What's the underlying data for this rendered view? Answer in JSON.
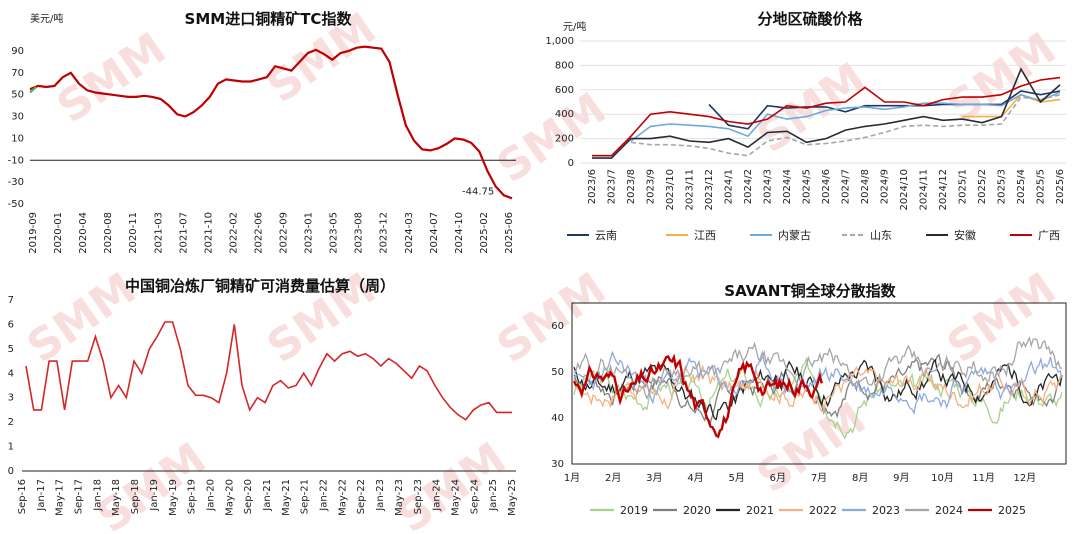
{
  "watermark": "SMM",
  "chart_data": [
    {
      "id": "tc",
      "type": "line",
      "title": "SMM进口铜精矿TC指数",
      "unit": "美元/吨",
      "ylim": [
        -50,
        100
      ],
      "yticks": [
        90,
        70,
        50,
        30,
        10,
        -10,
        -30,
        -50
      ],
      "xticks": [
        "2019-09",
        "2020-01",
        "2020-04",
        "2020-08",
        "2020-11",
        "2021-03",
        "2021-07",
        "2021-10",
        "2022-02",
        "2022-06",
        "2022-09",
        "2023-01",
        "2023-05",
        "2023-08",
        "2023-12",
        "2024-03",
        "2024-07",
        "2024-10",
        "2025-02",
        "2025-06"
      ],
      "annotation": "-44.75",
      "series": [
        {
          "color": "#c00000",
          "values": [
            55,
            58,
            57,
            58,
            66,
            70,
            60,
            54,
            52,
            51,
            50,
            49,
            48,
            48,
            49,
            48,
            46,
            40,
            32,
            30,
            34,
            40,
            48,
            60,
            64,
            63,
            62,
            62,
            64,
            66,
            76,
            74,
            72,
            80,
            88,
            91,
            87,
            82,
            88,
            90,
            93,
            94,
            93,
            92,
            80,
            50,
            22,
            8,
            0,
            -1,
            1,
            5,
            10,
            9,
            6,
            -2,
            -20,
            -34,
            -42,
            -44.75
          ]
        }
      ]
    },
    {
      "id": "acid",
      "type": "line",
      "title": "分地区硫酸价格",
      "unit": "元/吨",
      "ylim": [
        0,
        1000
      ],
      "yticks": [
        "1,000",
        "800",
        "600",
        "400",
        "200",
        "0"
      ],
      "categories": [
        "2023/6",
        "2023/7",
        "2023/8",
        "2023/9",
        "2023/10",
        "2023/11",
        "2023/12",
        "2024/1",
        "2024/2",
        "2024/3",
        "2024/4",
        "2024/5",
        "2024/6",
        "2024/7",
        "2024/8",
        "2024/9",
        "2024/10",
        "2024/11",
        "2024/12",
        "2025/1",
        "2025/2",
        "2025/3",
        "2025/4",
        "2025/5",
        "2025/6"
      ],
      "series": [
        {
          "name": "云南",
          "color": "#1f3864",
          "dash": "",
          "values": [
            null,
            null,
            null,
            null,
            null,
            null,
            480,
            310,
            280,
            470,
            450,
            460,
            460,
            420,
            470,
            470,
            470,
            470,
            480,
            480,
            480,
            480,
            590,
            560,
            590
          ]
        },
        {
          "name": "江西",
          "color": "#f5b041",
          "dash": "",
          "values": [
            null,
            null,
            null,
            null,
            null,
            null,
            null,
            null,
            null,
            null,
            null,
            null,
            null,
            null,
            null,
            null,
            null,
            null,
            null,
            380,
            380,
            380,
            560,
            500,
            520
          ]
        },
        {
          "name": "内蒙古",
          "color": "#6fa8dc",
          "dash": "",
          "values": [
            null,
            null,
            180,
            300,
            320,
            310,
            300,
            280,
            220,
            400,
            360,
            380,
            430,
            450,
            460,
            440,
            460,
            490,
            490,
            480,
            480,
            470,
            560,
            510,
            580
          ]
        },
        {
          "name": "山东",
          "color": "#a6a6a6",
          "dash": "5,3",
          "values": [
            null,
            null,
            170,
            150,
            150,
            140,
            120,
            80,
            60,
            180,
            210,
            150,
            160,
            180,
            210,
            250,
            300,
            310,
            300,
            310,
            310,
            320,
            540,
            520,
            560
          ]
        },
        {
          "name": "安徽",
          "color": "#262b35",
          "dash": "",
          "values": [
            40,
            40,
            200,
            200,
            220,
            180,
            170,
            200,
            130,
            250,
            260,
            170,
            200,
            270,
            300,
            320,
            350,
            380,
            350,
            360,
            330,
            380,
            770,
            500,
            640
          ]
        },
        {
          "name": "广西",
          "color": "#c00000",
          "dash": "",
          "values": [
            60,
            60,
            220,
            400,
            420,
            400,
            380,
            340,
            320,
            360,
            470,
            450,
            490,
            500,
            620,
            500,
            500,
            470,
            520,
            540,
            540,
            560,
            630,
            680,
            700
          ]
        }
      ]
    },
    {
      "id": "weeks",
      "type": "line",
      "title": "中国铜冶炼厂铜精矿可消费量估算（周）",
      "ylim": [
        0,
        7
      ],
      "yticks": [
        7,
        6,
        5,
        4,
        3,
        2,
        1,
        0
      ],
      "xticks": [
        "Sep-16",
        "Jan-17",
        "May-17",
        "Sep-17",
        "Jan-18",
        "May-18",
        "Sep-18",
        "Jan-19",
        "May-19",
        "Sep-19",
        "Jan-20",
        "May-20",
        "Sep-20",
        "Jan-21",
        "May-21",
        "Sep-21",
        "Jan-22",
        "May-22",
        "Sep-22",
        "Jan-23",
        "May-23",
        "Sep-23",
        "Jan-24",
        "May-24",
        "Sep-24",
        "Jan-25",
        "May-25"
      ],
      "series": [
        {
          "color": "#d62728",
          "values": [
            4.3,
            2.5,
            2.5,
            4.5,
            4.5,
            2.5,
            4.5,
            4.5,
            4.5,
            5.5,
            4.5,
            3,
            3.5,
            3,
            4.5,
            4,
            5,
            5.5,
            6.1,
            6.1,
            5,
            3.5,
            3.1,
            3.1,
            3,
            2.8,
            4,
            6,
            3.5,
            2.5,
            3,
            2.8,
            3.5,
            3.7,
            3.4,
            3.5,
            4,
            3.5,
            4.2,
            4.8,
            4.5,
            4.8,
            4.9,
            4.7,
            4.8,
            4.6,
            4.3,
            4.6,
            4.4,
            4.1,
            3.8,
            4.3,
            4.1,
            3.5,
            3,
            2.6,
            2.3,
            2.1,
            2.5,
            2.7,
            2.8,
            2.4,
            2.4,
            2.4
          ]
        }
      ]
    },
    {
      "id": "savant",
      "type": "line",
      "title": "SAVANT铜全球分散指数",
      "ylim": [
        30,
        65
      ],
      "yticks": [
        60,
        50,
        40,
        30
      ],
      "xticks": [
        "1月",
        "2月",
        "3月",
        "4月",
        "5月",
        "6月",
        "7月",
        "8月",
        "9月",
        "10月",
        "11月",
        "12月"
      ],
      "series": [
        {
          "name": "2019",
          "color": "#a9d18e",
          "base": 46,
          "amp": 6,
          "seed": 3
        },
        {
          "name": "2020",
          "color": "#7f7f7f",
          "base": 48,
          "amp": 5,
          "seed": 7
        },
        {
          "name": "2021",
          "color": "#262626",
          "base": 48,
          "amp": 6,
          "seed": 11
        },
        {
          "name": "2022",
          "color": "#f4b183",
          "base": 47,
          "amp": 5,
          "seed": 17
        },
        {
          "name": "2023",
          "color": "#8faadc",
          "base": 48,
          "amp": 5,
          "seed": 23
        },
        {
          "name": "2024",
          "color": "#a5a5a5",
          "base": 50,
          "amp": 6,
          "seed": 29
        },
        {
          "name": "2025",
          "color": "#c00000",
          "base": 48,
          "amp": 5,
          "seed": 31
        }
      ]
    }
  ]
}
